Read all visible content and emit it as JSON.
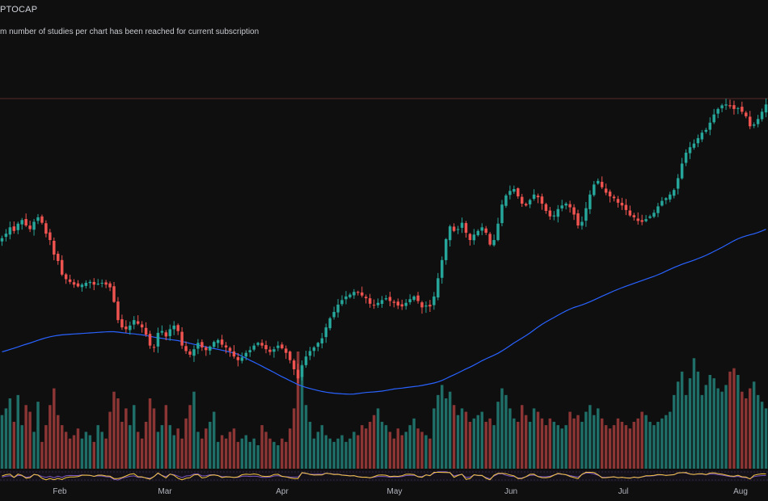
{
  "header": {
    "symbol": "PTOCAP",
    "warning": "m number of studies per chart has been reached for current subscription"
  },
  "colors": {
    "background": "#0f0f0f",
    "up": "#26a69a",
    "down": "#ef5350",
    "up_volume": "#1f6f68",
    "down_volume": "#8c3535",
    "moving_average": "#2962ff",
    "oscillator_1": "#f5c542",
    "oscillator_2": "#7e57c2",
    "horizontal_line": "#5a2a2a"
  },
  "chart_data": {
    "type": "candlestick",
    "x_axis_labels": [
      "Feb",
      "Mar",
      "Apr",
      "May",
      "Jun",
      "Jul",
      "Aug"
    ],
    "y_axis": "unlabeled",
    "grid": false,
    "close_series": [
      420,
      425,
      432,
      428,
      436,
      440,
      434,
      430,
      438,
      443,
      437,
      425,
      418,
      402,
      395,
      380,
      375,
      372,
      369,
      367,
      369,
      371,
      372,
      369,
      370,
      371,
      369,
      366,
      350,
      330,
      322,
      320,
      324,
      330,
      326,
      322,
      314,
      302,
      300,
      316,
      318,
      312,
      320,
      324,
      318,
      302,
      296,
      292,
      298,
      305,
      300,
      297,
      301,
      306,
      308,
      303,
      300,
      296,
      290,
      286,
      289,
      294,
      297,
      302,
      305,
      302,
      298,
      295,
      298,
      302,
      299,
      294,
      286,
      276,
      266,
      280,
      290,
      296,
      300,
      305,
      310,
      322,
      332,
      339,
      347,
      352,
      356,
      358,
      361,
      360,
      357,
      354,
      348,
      346,
      349,
      352,
      354,
      351,
      349,
      346,
      345,
      349,
      353,
      356,
      351,
      344,
      346,
      345,
      356,
      376,
      396,
      419,
      433,
      428,
      430,
      437,
      426,
      418,
      424,
      428,
      432,
      426,
      413,
      418,
      436,
      457,
      467,
      472,
      474,
      466,
      458,
      456,
      462,
      468,
      465,
      458,
      450,
      444,
      445,
      452,
      456,
      458,
      454,
      446,
      434,
      438,
      453,
      468,
      479,
      483,
      476,
      470,
      466,
      464,
      459,
      456,
      451,
      445,
      443,
      439,
      438,
      441,
      444,
      448,
      455,
      461,
      464,
      468,
      473,
      486,
      502,
      514,
      520,
      524,
      530,
      536,
      539,
      547,
      556,
      562,
      566,
      567,
      565,
      562,
      563,
      559,
      554,
      543,
      545,
      551,
      559,
      567
    ],
    "volume_series": [
      16,
      18,
      21,
      14,
      22,
      13,
      19,
      17,
      11,
      20,
      8,
      13,
      19,
      24,
      16,
      13,
      11,
      9,
      10,
      12,
      9,
      11,
      10,
      8,
      13,
      11,
      9,
      17,
      23,
      21,
      14,
      18,
      13,
      19,
      11,
      9,
      14,
      21,
      18,
      11,
      13,
      19,
      13,
      10,
      12,
      9,
      15,
      19,
      23,
      11,
      9,
      12,
      14,
      17,
      8,
      10,
      9,
      11,
      12,
      8,
      9,
      10,
      8,
      9,
      7,
      13,
      11,
      9,
      8,
      7,
      9,
      8,
      12,
      18,
      35,
      31,
      19,
      14,
      9,
      11,
      13,
      10,
      9,
      8,
      9,
      10,
      8,
      9,
      11,
      10,
      13,
      12,
      14,
      16,
      18,
      14,
      13,
      11,
      9,
      12,
      10,
      11,
      13,
      15,
      12,
      11,
      10,
      9,
      18,
      22,
      25,
      21,
      23,
      19,
      16,
      18,
      17,
      14,
      15,
      16,
      17,
      14,
      15,
      13,
      20,
      24,
      22,
      18,
      15,
      14,
      19,
      16,
      14,
      18,
      17,
      15,
      13,
      15,
      14,
      13,
      12,
      13,
      17,
      15,
      16,
      14,
      17,
      19,
      16,
      18,
      15,
      13,
      12,
      13,
      15,
      14,
      13,
      12,
      14,
      15,
      17,
      16,
      14,
      13,
      14,
      15,
      16,
      17,
      22,
      26,
      29,
      22,
      27,
      33,
      29,
      22,
      25,
      28,
      27,
      24,
      23,
      25,
      29,
      30,
      28,
      23,
      21,
      24,
      26,
      22,
      20,
      18
    ]
  }
}
